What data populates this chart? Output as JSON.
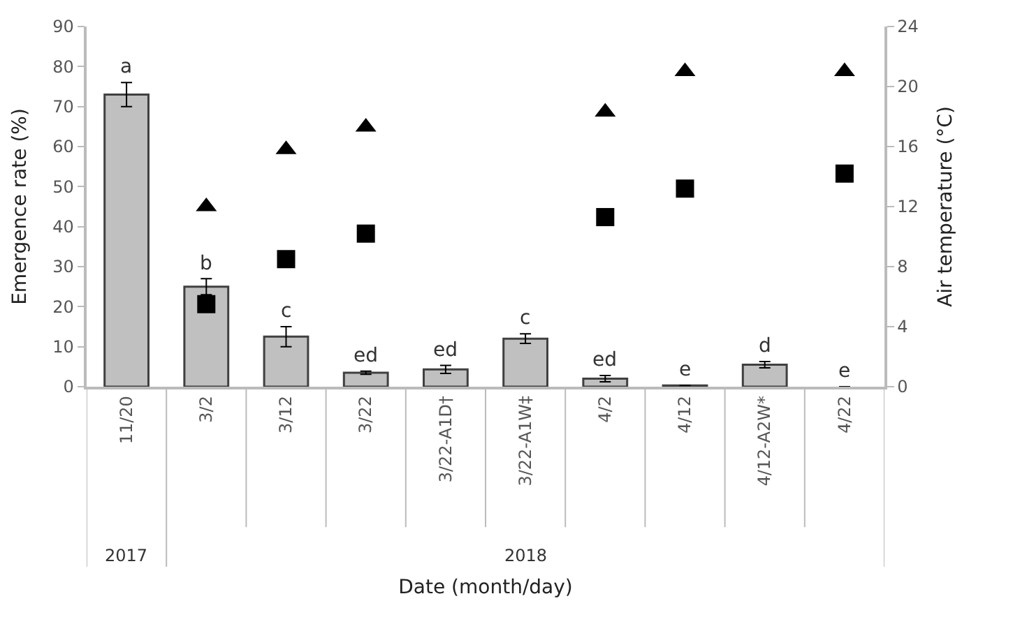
{
  "chart_data": {
    "type": "bar",
    "xlabel": "Date (month/day)",
    "ylabel": "Emergence rate (%)",
    "y2label": "Air temperature (°C)",
    "categories": [
      "11/20",
      "3/2",
      "3/12",
      "3/22",
      "3/22-A1D†",
      "3/22-A1W‡",
      "4/2",
      "4/12",
      "4/12-A2W*",
      "4/22"
    ],
    "series": [
      {
        "color": "#c0c0c0",
        "values": [
          73,
          25,
          12.5,
          3.5,
          4.3,
          12,
          2,
          0.3,
          5.5,
          0
        ],
        "errors": [
          3,
          2,
          2.5,
          0.4,
          1,
          1.2,
          0.8,
          null,
          0.8,
          null
        ],
        "value_labels": [
          "a",
          "b",
          "c",
          "ed",
          "ed",
          "c",
          "ed",
          "e",
          "d",
          "e"
        ]
      },
      {
        "type": "scatter",
        "axis": "y2",
        "marker": "triangle",
        "color": "#000000",
        "values": [
          null,
          12,
          15.8,
          17.3,
          null,
          null,
          18.3,
          21,
          null,
          21
        ]
      },
      {
        "type": "scatter",
        "axis": "y2",
        "marker": "square",
        "color": "#000000",
        "values": [
          null,
          5.5,
          8.5,
          10.2,
          null,
          null,
          11.3,
          13.2,
          null,
          14.2
        ]
      }
    ],
    "ylim": [
      0,
      90
    ],
    "yticks": [
      0,
      10,
      20,
      30,
      40,
      50,
      60,
      70,
      80,
      90
    ],
    "y2lim": [
      0,
      24
    ],
    "y2ticks": [
      0,
      4,
      8,
      12,
      16,
      20,
      24
    ],
    "annotations": [
      "2017",
      "2018"
    ]
  }
}
